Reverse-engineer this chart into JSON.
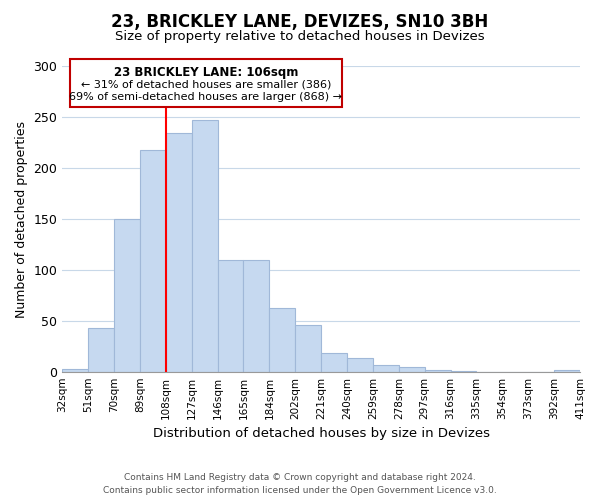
{
  "title": "23, BRICKLEY LANE, DEVIZES, SN10 3BH",
  "subtitle": "Size of property relative to detached houses in Devizes",
  "xlabel": "Distribution of detached houses by size in Devizes",
  "ylabel": "Number of detached properties",
  "footer_line1": "Contains HM Land Registry data © Crown copyright and database right 2024.",
  "footer_line2": "Contains public sector information licensed under the Open Government Licence v3.0.",
  "bin_labels": [
    "32sqm",
    "51sqm",
    "70sqm",
    "89sqm",
    "108sqm",
    "127sqm",
    "146sqm",
    "165sqm",
    "184sqm",
    "202sqm",
    "221sqm",
    "240sqm",
    "259sqm",
    "278sqm",
    "297sqm",
    "316sqm",
    "335sqm",
    "354sqm",
    "373sqm",
    "392sqm",
    "411sqm"
  ],
  "bar_heights": [
    3,
    43,
    150,
    218,
    235,
    247,
    110,
    110,
    63,
    46,
    18,
    13,
    7,
    5,
    2,
    1,
    0,
    0,
    0,
    2
  ],
  "bar_color": "#c6d9f0",
  "bar_edge_color": "#a0b8d8",
  "vline_x_idx": 4,
  "vline_color": "red",
  "annotation_title": "23 BRICKLEY LANE: 106sqm",
  "annotation_line1": "← 31% of detached houses are smaller (386)",
  "annotation_line2": "69% of semi-detached houses are larger (868) →",
  "annotation_box_color": "white",
  "annotation_box_edge": "#c00000",
  "ylim": [
    0,
    300
  ],
  "yticks": [
    0,
    50,
    100,
    150,
    200,
    250,
    300
  ]
}
